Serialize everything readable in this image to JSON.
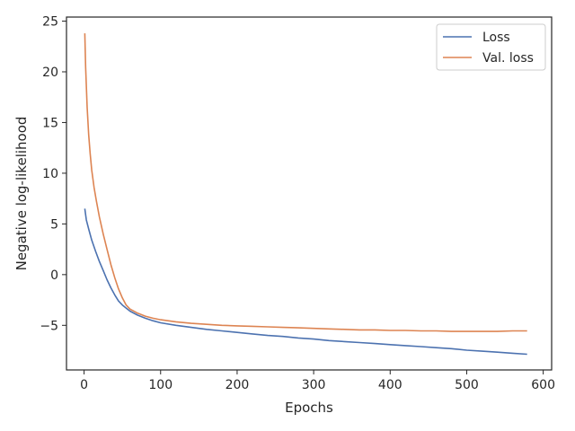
{
  "chart_data": {
    "type": "line",
    "title": "",
    "xlabel": "Epochs",
    "ylabel": "Negative log-likelihood",
    "xlim": [
      -23,
      611
    ],
    "ylim": [
      -9.4,
      25.4
    ],
    "xticks": [
      0,
      100,
      200,
      300,
      400,
      500,
      600
    ],
    "yticks": [
      -5,
      0,
      5,
      10,
      15,
      20,
      25
    ],
    "grid": false,
    "legend": {
      "placement": "top-right"
    },
    "series": [
      {
        "name": "Loss",
        "color": "#4c72b0",
        "points": [
          [
            1,
            6.5
          ],
          [
            3,
            5.4
          ],
          [
            6,
            4.5
          ],
          [
            10,
            3.4
          ],
          [
            15,
            2.3
          ],
          [
            20,
            1.3
          ],
          [
            25,
            0.4
          ],
          [
            30,
            -0.5
          ],
          [
            35,
            -1.3
          ],
          [
            40,
            -2.0
          ],
          [
            45,
            -2.6
          ],
          [
            50,
            -3.0
          ],
          [
            55,
            -3.3
          ],
          [
            60,
            -3.6
          ],
          [
            70,
            -4.0
          ],
          [
            80,
            -4.3
          ],
          [
            90,
            -4.55
          ],
          [
            100,
            -4.75
          ],
          [
            120,
            -5.0
          ],
          [
            140,
            -5.2
          ],
          [
            160,
            -5.4
          ],
          [
            180,
            -5.55
          ],
          [
            200,
            -5.7
          ],
          [
            220,
            -5.85
          ],
          [
            240,
            -6.0
          ],
          [
            260,
            -6.1
          ],
          [
            280,
            -6.25
          ],
          [
            300,
            -6.35
          ],
          [
            320,
            -6.5
          ],
          [
            340,
            -6.6
          ],
          [
            360,
            -6.7
          ],
          [
            380,
            -6.8
          ],
          [
            400,
            -6.9
          ],
          [
            420,
            -7.0
          ],
          [
            440,
            -7.1
          ],
          [
            460,
            -7.2
          ],
          [
            480,
            -7.3
          ],
          [
            500,
            -7.45
          ],
          [
            520,
            -7.55
          ],
          [
            540,
            -7.65
          ],
          [
            560,
            -7.75
          ],
          [
            579,
            -7.85
          ]
        ]
      },
      {
        "name": "Val. loss",
        "color": "#dd8452",
        "points": [
          [
            1,
            23.8
          ],
          [
            2,
            20.5
          ],
          [
            4,
            16.5
          ],
          [
            6,
            13.8
          ],
          [
            8,
            11.9
          ],
          [
            10,
            10.3
          ],
          [
            13,
            8.6
          ],
          [
            16,
            7.3
          ],
          [
            20,
            5.7
          ],
          [
            25,
            4.0
          ],
          [
            30,
            2.5
          ],
          [
            35,
            1.0
          ],
          [
            40,
            -0.3
          ],
          [
            45,
            -1.4
          ],
          [
            50,
            -2.3
          ],
          [
            55,
            -3.0
          ],
          [
            60,
            -3.4
          ],
          [
            70,
            -3.8
          ],
          [
            80,
            -4.1
          ],
          [
            90,
            -4.3
          ],
          [
            100,
            -4.45
          ],
          [
            120,
            -4.65
          ],
          [
            140,
            -4.8
          ],
          [
            160,
            -4.9
          ],
          [
            180,
            -5.0
          ],
          [
            200,
            -5.05
          ],
          [
            220,
            -5.1
          ],
          [
            240,
            -5.15
          ],
          [
            260,
            -5.2
          ],
          [
            280,
            -5.25
          ],
          [
            300,
            -5.3
          ],
          [
            320,
            -5.35
          ],
          [
            340,
            -5.4
          ],
          [
            360,
            -5.45
          ],
          [
            380,
            -5.45
          ],
          [
            400,
            -5.5
          ],
          [
            420,
            -5.5
          ],
          [
            440,
            -5.55
          ],
          [
            460,
            -5.55
          ],
          [
            480,
            -5.6
          ],
          [
            500,
            -5.6
          ],
          [
            520,
            -5.6
          ],
          [
            540,
            -5.6
          ],
          [
            560,
            -5.55
          ],
          [
            579,
            -5.55
          ]
        ]
      }
    ]
  }
}
